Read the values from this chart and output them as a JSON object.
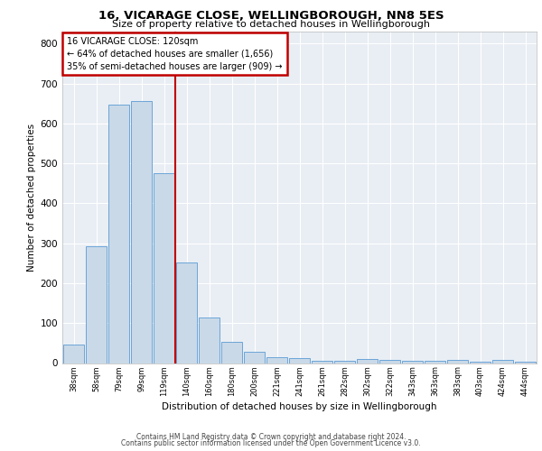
{
  "title1": "16, VICARAGE CLOSE, WELLINGBOROUGH, NN8 5ES",
  "title2": "Size of property relative to detached houses in Wellingborough",
  "xlabel": "Distribution of detached houses by size in Wellingborough",
  "ylabel": "Number of detached properties",
  "categories": [
    "38sqm",
    "58sqm",
    "79sqm",
    "99sqm",
    "119sqm",
    "140sqm",
    "160sqm",
    "180sqm",
    "200sqm",
    "221sqm",
    "241sqm",
    "261sqm",
    "282sqm",
    "302sqm",
    "322sqm",
    "343sqm",
    "363sqm",
    "383sqm",
    "403sqm",
    "424sqm",
    "444sqm"
  ],
  "values": [
    47,
    293,
    648,
    656,
    476,
    251,
    113,
    52,
    29,
    15,
    13,
    6,
    5,
    10,
    8,
    5,
    5,
    8,
    3,
    8,
    3
  ],
  "bar_color": "#c9d9e8",
  "bar_edge_color": "#5b9bd5",
  "vline_x_index": 4,
  "vline_color": "#c00000",
  "annotation_text": "16 VICARAGE CLOSE: 120sqm\n← 64% of detached houses are smaller (1,656)\n35% of semi-detached houses are larger (909) →",
  "annotation_box_color": "#c00000",
  "annotation_text_color": "black",
  "ylim": [
    0,
    830
  ],
  "yticks": [
    0,
    100,
    200,
    300,
    400,
    500,
    600,
    700,
    800
  ],
  "background_color": "#e8eef4",
  "grid_color": "white",
  "footer1": "Contains HM Land Registry data © Crown copyright and database right 2024.",
  "footer2": "Contains public sector information licensed under the Open Government Licence v3.0."
}
